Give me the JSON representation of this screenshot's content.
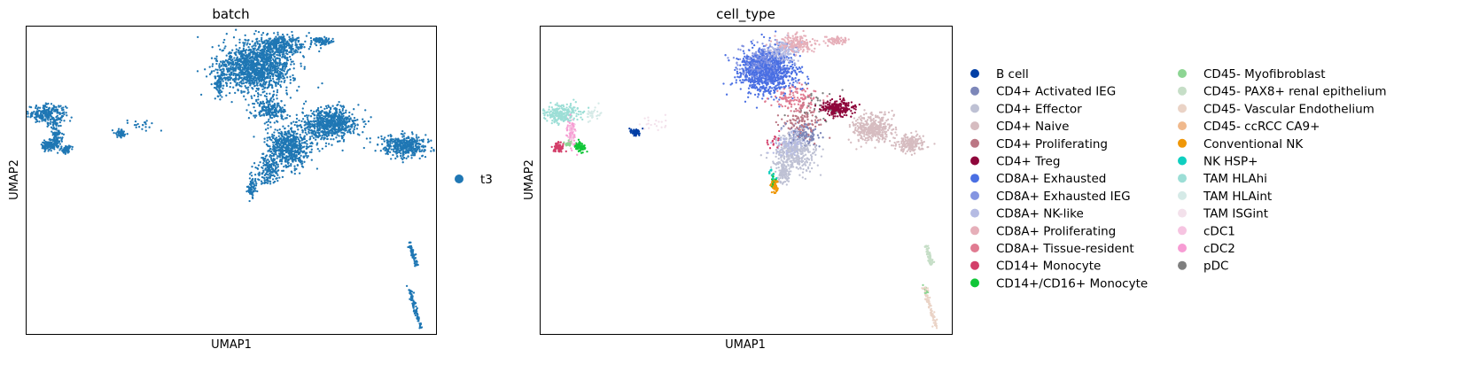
{
  "chart_data": [
    {
      "type": "scatter",
      "title": "batch",
      "xlabel": "UMAP1",
      "ylabel": "UMAP2",
      "grid": false,
      "ticks": false,
      "legend_placement": "right",
      "series": [
        {
          "name": "t3",
          "color": "#1f77b4"
        }
      ],
      "clusters": [
        {
          "cx": 2.5,
          "cy": 8.2,
          "sx": 2.3,
          "sy": 0.7,
          "n": 240,
          "group": "t3"
        },
        {
          "cx": 3.7,
          "cy": 6.6,
          "sx": 0.6,
          "sy": 1.2,
          "n": 110,
          "group": "t3"
        },
        {
          "cx": 2.7,
          "cy": 5.7,
          "sx": 0.9,
          "sy": 0.4,
          "n": 100,
          "group": "t3"
        },
        {
          "cx": 4.8,
          "cy": 5.4,
          "sx": 0.6,
          "sy": 0.35,
          "n": 60,
          "group": "t3"
        },
        {
          "cx": 11.5,
          "cy": 6.7,
          "sx": 0.7,
          "sy": 0.3,
          "n": 50,
          "group": "t3"
        },
        {
          "cx": 13.8,
          "cy": 7.4,
          "sx": 1.8,
          "sy": 0.5,
          "n": 20,
          "group": "t3"
        },
        {
          "cx": 28.0,
          "cy": 11.8,
          "sx": 4.5,
          "sy": 1.8,
          "n": 1300,
          "group": "t3"
        },
        {
          "cx": 31.0,
          "cy": 13.6,
          "sx": 3.0,
          "sy": 0.8,
          "n": 320,
          "group": "t3"
        },
        {
          "cx": 37.0,
          "cy": 7.4,
          "sx": 3.5,
          "sy": 1.2,
          "n": 700,
          "group": "t3"
        },
        {
          "cx": 32.0,
          "cy": 5.6,
          "sx": 2.5,
          "sy": 1.5,
          "n": 600,
          "group": "t3"
        },
        {
          "cx": 29.5,
          "cy": 3.8,
          "sx": 1.3,
          "sy": 1.2,
          "n": 160,
          "group": "t3"
        },
        {
          "cx": 27.5,
          "cy": 2.5,
          "sx": 0.6,
          "sy": 0.9,
          "n": 70,
          "group": "t3"
        },
        {
          "cx": 46.0,
          "cy": 5.7,
          "sx": 2.8,
          "sy": 0.8,
          "n": 380,
          "group": "t3"
        },
        {
          "cx": 36.0,
          "cy": 13.9,
          "sx": 1.5,
          "sy": 0.3,
          "n": 80,
          "group": "t3"
        },
        {
          "cx": 23.5,
          "cy": 10.5,
          "sx": 0.5,
          "sy": 1.0,
          "n": 80,
          "group": "t3"
        },
        {
          "cx": 29.8,
          "cy": 8.5,
          "sx": 2.0,
          "sy": 0.9,
          "n": 200,
          "group": "t3"
        }
      ],
      "streaks": [
        {
          "x0": 46.8,
          "y0": -2.0,
          "x1": 47.6,
          "y1": -3.6,
          "n": 70,
          "group": "t3"
        },
        {
          "x0": 46.7,
          "y0": -5.4,
          "x1": 48.1,
          "y1": -8.5,
          "n": 80,
          "group": "t3"
        }
      ],
      "xlim": [
        0,
        50
      ],
      "ylim": [
        -9,
        15
      ]
    },
    {
      "type": "scatter",
      "title": "cell_type",
      "xlabel": "UMAP1",
      "ylabel": "UMAP2",
      "grid": false,
      "ticks": false,
      "legend_placement": "right",
      "legend_columns": 2,
      "series": [
        {
          "name": "B cell",
          "color": "#023fa5"
        },
        {
          "name": "CD4+ Activated IEG",
          "color": "#7d87b9"
        },
        {
          "name": "CD4+ Effector",
          "color": "#bec1d4"
        },
        {
          "name": "CD4+ Naive",
          "color": "#d6bcc0"
        },
        {
          "name": "CD4+ Proliferating",
          "color": "#bb7784"
        },
        {
          "name": "CD4+ Treg",
          "color": "#8e063b"
        },
        {
          "name": "CD8A+ Exhausted",
          "color": "#4a6fe3"
        },
        {
          "name": "CD8A+ Exhausted IEG",
          "color": "#8595e1"
        },
        {
          "name": "CD8A+ NK-like",
          "color": "#b5bbe3"
        },
        {
          "name": "CD8A+ Proliferating",
          "color": "#e6afb9"
        },
        {
          "name": "CD8A+ Tissue-resident",
          "color": "#e07b91"
        },
        {
          "name": "CD14+ Monocyte",
          "color": "#d33f6a"
        },
        {
          "name": "CD14+/CD16+ Monocyte",
          "color": "#11c638"
        },
        {
          "name": "CD45- Myofibroblast",
          "color": "#8dd593"
        },
        {
          "name": "CD45- PAX8+ renal epithelium",
          "color": "#c6dec7"
        },
        {
          "name": "CD45- Vascular Endothelium",
          "color": "#ead3c6"
        },
        {
          "name": "CD45- ccRCC CA9+",
          "color": "#f0b98d"
        },
        {
          "name": "Conventional NK",
          "color": "#ef9708"
        },
        {
          "name": "NK HSP+",
          "color": "#0fcfc0"
        },
        {
          "name": "TAM HLAhi",
          "color": "#9cded6"
        },
        {
          "name": "TAM HLAint",
          "color": "#d5eae7"
        },
        {
          "name": "TAM ISGint",
          "color": "#f3e1eb"
        },
        {
          "name": "cDC1",
          "color": "#f6c4e1"
        },
        {
          "name": "cDC2",
          "color": "#f79cd4"
        },
        {
          "name": "pDC",
          "color": "#7f7f7f"
        }
      ],
      "clusters": [
        {
          "cx": 2.5,
          "cy": 8.2,
          "sx": 2.3,
          "sy": 0.7,
          "n": 240,
          "group": "TAM HLAhi"
        },
        {
          "cx": 3.7,
          "cy": 6.6,
          "sx": 0.6,
          "sy": 1.2,
          "n": 60,
          "group": "cDC2"
        },
        {
          "cx": 3.8,
          "cy": 6.8,
          "sx": 0.5,
          "sy": 1.0,
          "n": 40,
          "group": "cDC1"
        },
        {
          "cx": 6.5,
          "cy": 8.2,
          "sx": 0.9,
          "sy": 0.4,
          "n": 30,
          "group": "TAM HLAint"
        },
        {
          "cx": 2.2,
          "cy": 5.5,
          "sx": 0.6,
          "sy": 0.4,
          "n": 70,
          "group": "CD14+ Monocyte"
        },
        {
          "cx": 4.8,
          "cy": 5.6,
          "sx": 0.6,
          "sy": 0.35,
          "n": 75,
          "group": "CD14+/CD16+ Monocyte"
        },
        {
          "cx": 3.3,
          "cy": 5.9,
          "sx": 0.5,
          "sy": 0.3,
          "n": 20,
          "group": "CD45- Myofibroblast"
        },
        {
          "cx": 11.5,
          "cy": 6.7,
          "sx": 0.7,
          "sy": 0.3,
          "n": 50,
          "group": "B cell"
        },
        {
          "cx": 13.8,
          "cy": 7.4,
          "sx": 1.8,
          "sy": 0.5,
          "n": 20,
          "group": "TAM ISGint"
        },
        {
          "cx": 27.5,
          "cy": 11.5,
          "sx": 3.5,
          "sy": 1.8,
          "n": 900,
          "group": "CD8A+ Exhausted"
        },
        {
          "cx": 27.0,
          "cy": 12.2,
          "sx": 2.8,
          "sy": 1.4,
          "n": 250,
          "group": "CD8A+ Exhausted IEG"
        },
        {
          "cx": 31.0,
          "cy": 13.6,
          "sx": 2.5,
          "sy": 0.8,
          "n": 180,
          "group": "CD8A+ Proliferating"
        },
        {
          "cx": 36.0,
          "cy": 13.9,
          "sx": 1.5,
          "sy": 0.3,
          "n": 60,
          "group": "CD8A+ Proliferating"
        },
        {
          "cx": 29.5,
          "cy": 13.0,
          "sx": 2.0,
          "sy": 1.0,
          "n": 150,
          "group": "CD8A+ NK-like"
        },
        {
          "cx": 31.0,
          "cy": 9.4,
          "sx": 2.5,
          "sy": 1.0,
          "n": 120,
          "group": "CD8A+ Tissue-resident"
        },
        {
          "cx": 36.0,
          "cy": 8.6,
          "sx": 1.8,
          "sy": 0.6,
          "n": 250,
          "group": "CD4+ Treg"
        },
        {
          "cx": 32.0,
          "cy": 7.5,
          "sx": 2.5,
          "sy": 1.2,
          "n": 120,
          "group": "CD4+ Proliferating"
        },
        {
          "cx": 40.5,
          "cy": 7.0,
          "sx": 2.3,
          "sy": 1.0,
          "n": 400,
          "group": "CD4+ Naive"
        },
        {
          "cx": 45.0,
          "cy": 5.9,
          "sx": 1.6,
          "sy": 0.7,
          "n": 180,
          "group": "CD4+ Naive"
        },
        {
          "cx": 31.0,
          "cy": 5.0,
          "sx": 2.5,
          "sy": 1.5,
          "n": 320,
          "group": "CD4+ Effector"
        },
        {
          "cx": 30.5,
          "cy": 5.8,
          "sx": 1.8,
          "sy": 1.0,
          "n": 120,
          "group": "CD8A+ NK-like"
        },
        {
          "cx": 32.0,
          "cy": 6.5,
          "sx": 2.0,
          "sy": 1.0,
          "n": 120,
          "group": "CD4+ Activated IEG"
        },
        {
          "cx": 29.5,
          "cy": 3.6,
          "sx": 0.8,
          "sy": 1.0,
          "n": 100,
          "group": "CD4+ Effector"
        },
        {
          "cx": 28.5,
          "cy": 2.5,
          "sx": 0.5,
          "sy": 0.6,
          "n": 50,
          "group": "Conventional NK"
        },
        {
          "cx": 28.3,
          "cy": 2.9,
          "sx": 0.4,
          "sy": 0.4,
          "n": 15,
          "group": "CD14+/CD16+ Monocyte"
        },
        {
          "cx": 28.2,
          "cy": 3.5,
          "sx": 0.5,
          "sy": 0.4,
          "n": 15,
          "group": "NK HSP+"
        },
        {
          "cx": 28.5,
          "cy": 6.0,
          "sx": 1.0,
          "sy": 0.6,
          "n": 20,
          "group": "CD14+ Monocyte"
        },
        {
          "cx": 34.0,
          "cy": 9.0,
          "sx": 3.0,
          "sy": 1.5,
          "n": 30,
          "group": "pDC"
        }
      ],
      "streaks": [
        {
          "x0": 46.8,
          "y0": -2.0,
          "x1": 47.6,
          "y1": -3.6,
          "n": 70,
          "group": "CD45- PAX8+ renal epithelium"
        },
        {
          "x0": 46.7,
          "y0": -5.4,
          "x1": 48.1,
          "y1": -8.5,
          "n": 80,
          "group": "CD45- Vascular Endothelium"
        },
        {
          "x0": 46.6,
          "y0": -5.3,
          "x1": 47.0,
          "y1": -5.9,
          "n": 15,
          "group": "CD45- Myofibroblast"
        }
      ],
      "xlim": [
        0,
        50
      ],
      "ylim": [
        -9,
        15
      ]
    }
  ]
}
